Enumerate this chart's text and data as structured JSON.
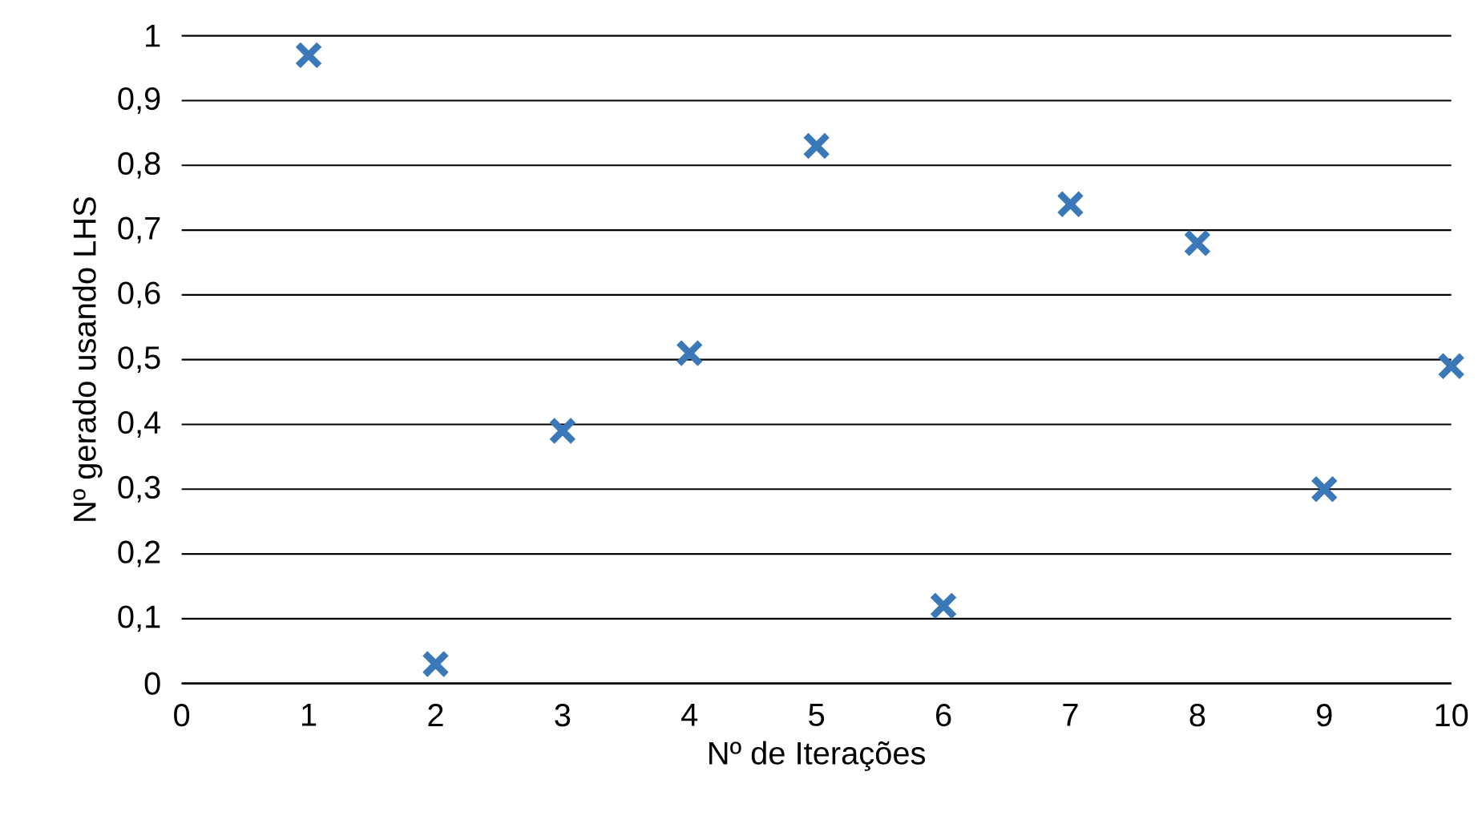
{
  "chart_data": {
    "type": "scatter",
    "xlabel": "Nº de Iterações",
    "ylabel": "Nº gerado usando LHS",
    "x": [
      1,
      2,
      3,
      4,
      5,
      6,
      7,
      8,
      9,
      10
    ],
    "values": [
      0.97,
      0.03,
      0.39,
      0.51,
      0.83,
      0.12,
      0.74,
      0.68,
      0.3,
      0.49
    ],
    "color": "#3a78b8",
    "marker": "cross",
    "grid": "y",
    "xlim": [
      0,
      10
    ],
    "xticks": [
      0,
      1,
      2,
      3,
      4,
      5,
      6,
      7,
      8,
      9,
      10
    ],
    "ylim": [
      0,
      1
    ],
    "yticks": [
      0,
      {
        "value": 0.1,
        "label": "0,1"
      },
      {
        "value": 0.2,
        "label": "0,2"
      },
      {
        "value": 0.3,
        "label": "0,3"
      },
      {
        "value": 0.4,
        "label": "0,4"
      },
      {
        "value": 0.5,
        "label": "0,5"
      },
      {
        "value": 0.6,
        "label": "0,6"
      },
      {
        "value": 0.7,
        "label": "0,7"
      },
      {
        "value": 0.8,
        "label": "0,8"
      },
      {
        "value": 0.9,
        "label": "0,9"
      },
      1
    ]
  }
}
